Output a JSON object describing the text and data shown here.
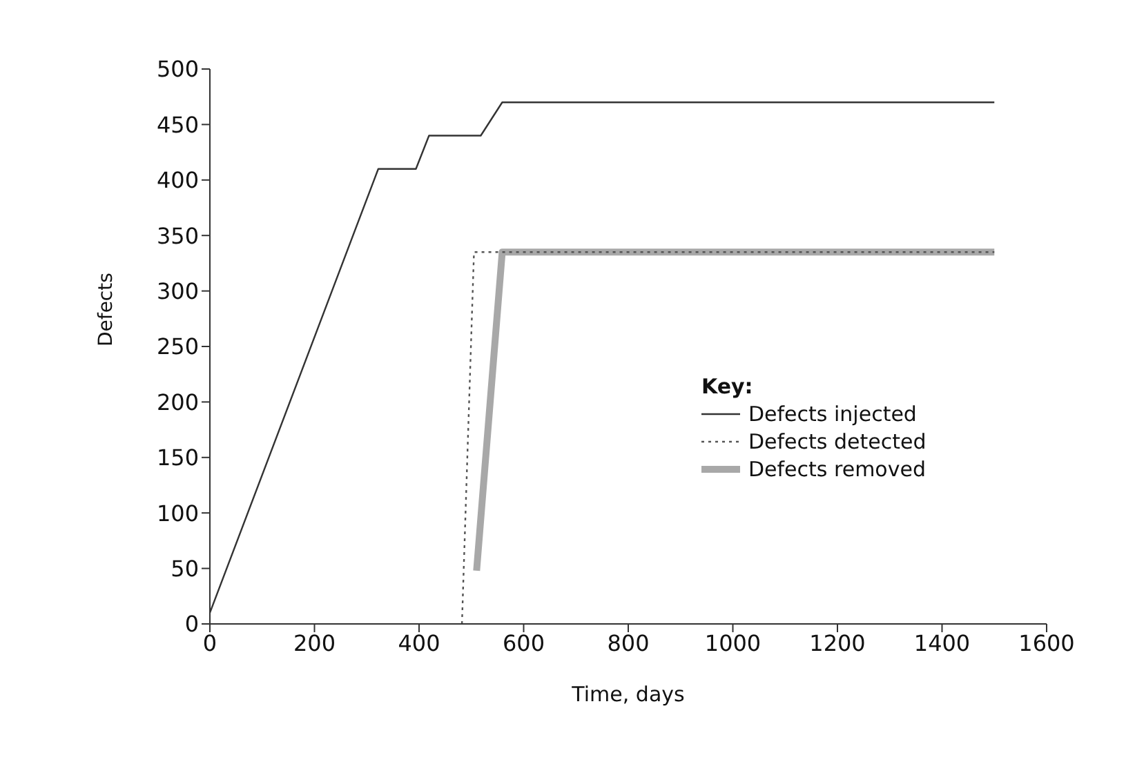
{
  "chart_data": {
    "type": "line",
    "xlabel": "Time, days",
    "ylabel": "Defects",
    "legend_title": "Key:",
    "legend": "right",
    "xlim": [
      0,
      1600
    ],
    "xticks": [
      0,
      200,
      400,
      600,
      800,
      1000,
      1200,
      1400,
      1600
    ],
    "ylim": [
      0,
      500
    ],
    "yticks": [
      0,
      50,
      100,
      150,
      200,
      250,
      300,
      350,
      400,
      450,
      500
    ],
    "grid": false,
    "series": [
      {
        "name": "Defects injected",
        "color": "#333333",
        "line_style": "solid",
        "x": [
          0,
          322,
          394,
          419,
          518,
          559,
          1500
        ],
        "values": [
          10,
          410,
          410,
          440,
          440,
          470,
          470
        ]
      },
      {
        "name": "Defects detected",
        "color": "#555555",
        "line_style": "dotted",
        "x": [
          482,
          505,
          1500
        ],
        "values": [
          0,
          335,
          335
        ]
      },
      {
        "name": "Defects removed",
        "color": "#a8a8a8",
        "line_style": "solid",
        "x": [
          510,
          559,
          1500
        ],
        "values": [
          48,
          335,
          335
        ]
      }
    ]
  }
}
